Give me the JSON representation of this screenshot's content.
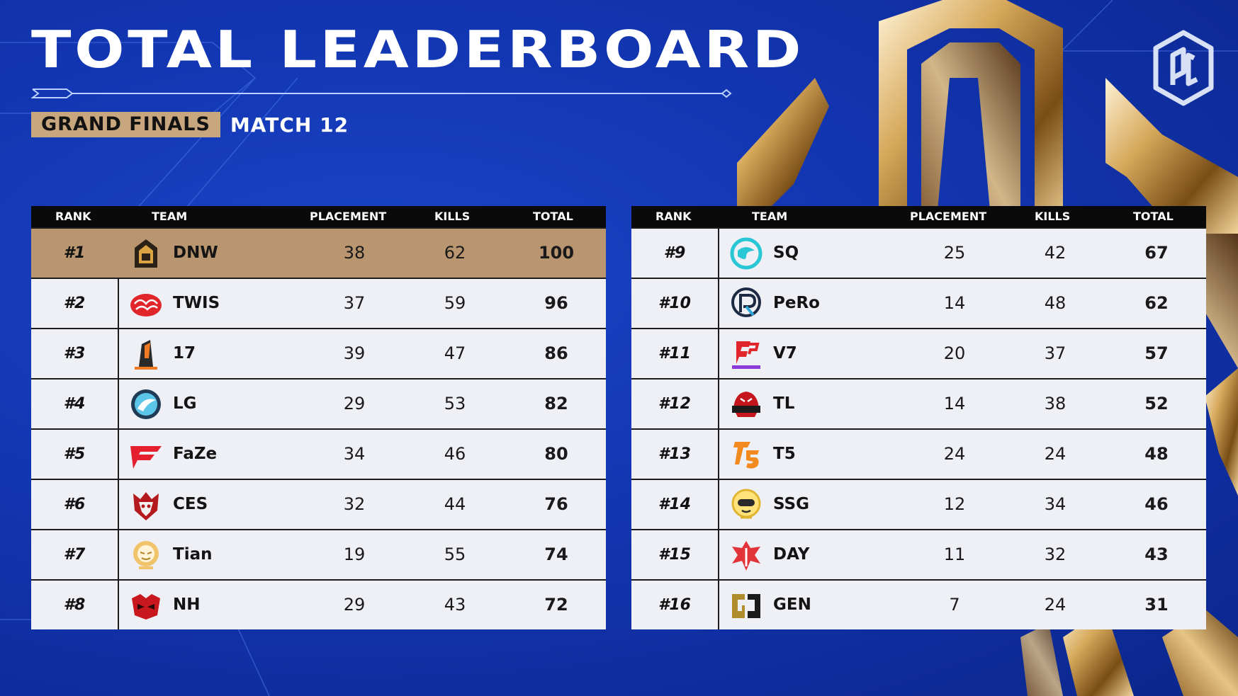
{
  "header": {
    "title": "TOTAL LEADERBOARD",
    "stage": "GRAND FINALS",
    "match": "MATCH 12",
    "logo_icon": "pgc-logo"
  },
  "colors": {
    "background": "#1235b0",
    "gold": "#c9a77e",
    "header_bar": "#0a0a0a",
    "row": "#eef0f5"
  },
  "columns": {
    "rank": "RANK",
    "team": "TEAM",
    "placement": "PLACEMENT",
    "kills": "KILLS",
    "total": "TOTAL"
  },
  "left_board": [
    {
      "rank": "#1",
      "team": "DNW",
      "placement": "38",
      "kills": "62",
      "total": "100",
      "icon": "dnw-logo-icon"
    },
    {
      "rank": "#2",
      "team": "TWIS",
      "placement": "37",
      "kills": "59",
      "total": "96",
      "icon": "twis-logo-icon"
    },
    {
      "rank": "#3",
      "team": "17",
      "placement": "39",
      "kills": "47",
      "total": "86",
      "icon": "17gaming-logo-icon"
    },
    {
      "rank": "#4",
      "team": "LG",
      "placement": "29",
      "kills": "53",
      "total": "82",
      "icon": "lg-logo-icon"
    },
    {
      "rank": "#5",
      "team": "FaZe",
      "placement": "34",
      "kills": "46",
      "total": "80",
      "icon": "faze-logo-icon"
    },
    {
      "rank": "#6",
      "team": "CES",
      "placement": "32",
      "kills": "44",
      "total": "76",
      "icon": "ces-logo-icon"
    },
    {
      "rank": "#7",
      "team": "Tian",
      "placement": "19",
      "kills": "55",
      "total": "74",
      "icon": "tian-logo-icon"
    },
    {
      "rank": "#8",
      "team": "NH",
      "placement": "29",
      "kills": "43",
      "total": "72",
      "icon": "nh-logo-icon"
    }
  ],
  "right_board": [
    {
      "rank": "#9",
      "team": "SQ",
      "placement": "25",
      "kills": "42",
      "total": "67",
      "icon": "sq-logo-icon"
    },
    {
      "rank": "#10",
      "team": "PeRo",
      "placement": "14",
      "kills": "48",
      "total": "62",
      "icon": "pero-logo-icon"
    },
    {
      "rank": "#11",
      "team": "V7",
      "placement": "20",
      "kills": "37",
      "total": "57",
      "icon": "v7-logo-icon"
    },
    {
      "rank": "#12",
      "team": "TL",
      "placement": "14",
      "kills": "38",
      "total": "52",
      "icon": "tyloo-logo-icon"
    },
    {
      "rank": "#13",
      "team": "T5",
      "placement": "24",
      "kills": "24",
      "total": "48",
      "icon": "t5-logo-icon"
    },
    {
      "rank": "#14",
      "team": "SSG",
      "placement": "12",
      "kills": "34",
      "total": "46",
      "icon": "ssg-logo-icon"
    },
    {
      "rank": "#15",
      "team": "DAY",
      "placement": "11",
      "kills": "32",
      "total": "43",
      "icon": "day-logo-icon"
    },
    {
      "rank": "#16",
      "team": "GEN",
      "placement": "7",
      "kills": "24",
      "total": "31",
      "icon": "gen-logo-icon"
    }
  ]
}
